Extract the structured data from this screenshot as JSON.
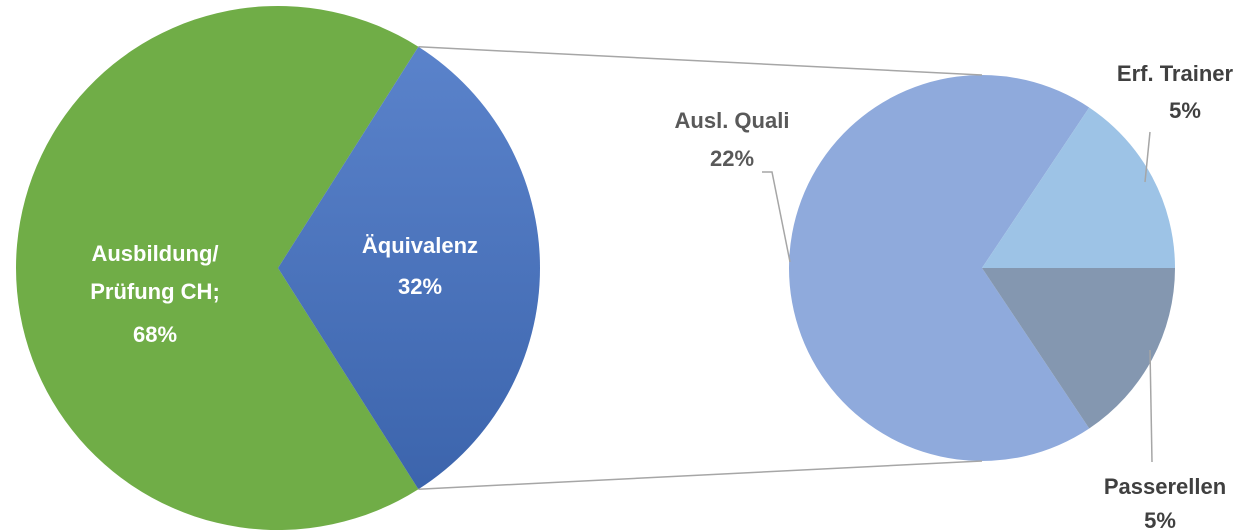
{
  "chart_data": [
    {
      "type": "pie",
      "categories": [
        "Ausbildung/ Prüfung CH;",
        "Äquivalenz"
      ],
      "values": [
        68,
        32
      ],
      "value_labels": [
        "68%",
        "32%"
      ],
      "colors": [
        "#70ad47",
        "#4472c4"
      ]
    },
    {
      "type": "pie",
      "categories": [
        "Ausl. Quali",
        "Erf. Trainer",
        "Passerellen"
      ],
      "values": [
        22,
        5,
        5
      ],
      "value_labels": [
        "22%",
        "5%",
        "5%"
      ],
      "colors": [
        "#8faadc",
        "#9dc3e6",
        "#8497b0"
      ]
    }
  ]
}
